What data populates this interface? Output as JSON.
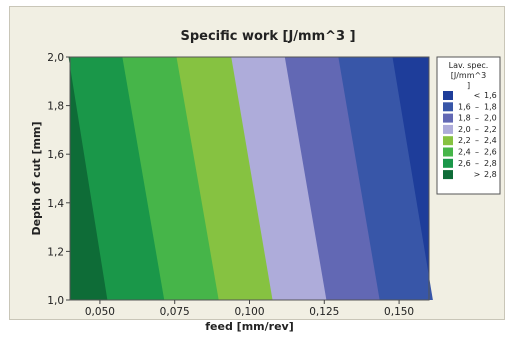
{
  "chart_data": {
    "type": "contour",
    "title": "Specific work [J/mm^3 ]",
    "xlabel": "feed [mm/rev]",
    "ylabel": "Depth of cut [mm]",
    "xlim": [
      0.04,
      0.16
    ],
    "ylim": [
      1.0,
      2.0
    ],
    "xticks": [
      "0,050",
      "0,075",
      "0,100",
      "0,125",
      "0,150"
    ],
    "xtick_values": [
      0.05,
      0.075,
      0.1,
      0.125,
      0.15
    ],
    "yticks": [
      "1,0",
      "1,2",
      "1,4",
      "1,6",
      "1,8",
      "2,0"
    ],
    "ytick_values": [
      1.0,
      1.2,
      1.4,
      1.6,
      1.8,
      2.0
    ],
    "legend": {
      "title": [
        "Lav. spec.",
        "[J/mm^3",
        "]"
      ],
      "placement": "right",
      "levels": [
        {
          "lo": "<",
          "hi": "1,6",
          "color": "#1e3d9a"
        },
        {
          "lo": "1,6",
          "hi": "1,8",
          "color": "#3856a8"
        },
        {
          "lo": "1,8",
          "hi": "2,0",
          "color": "#6268b4"
        },
        {
          "lo": "2,0",
          "hi": "2,2",
          "color": "#aeacda"
        },
        {
          "lo": "2,2",
          "hi": "2,4",
          "color": "#86c241"
        },
        {
          "lo": "2,4",
          "hi": "2,6",
          "color": "#46b549"
        },
        {
          "lo": "2,6",
          "hi": "2,8",
          "color": "#1a9749"
        },
        {
          "lo": ">",
          "hi": "2,8",
          "color": "#0e6c37"
        }
      ]
    },
    "contour_boundaries": [
      {
        "level": "2,8",
        "x_at_ymin": 0.0525,
        "x_at_ymax": 0.0395
      },
      {
        "level": "2,6",
        "x_at_ymin": 0.0715,
        "x_at_ymax": 0.0575
      },
      {
        "level": "2,4",
        "x_at_ymin": 0.0897,
        "x_at_ymax": 0.0756
      },
      {
        "level": "2,2",
        "x_at_ymin": 0.1077,
        "x_at_ymax": 0.0939
      },
      {
        "level": "2,0",
        "x_at_ymin": 0.1257,
        "x_at_ymax": 0.1118
      },
      {
        "level": "1,8",
        "x_at_ymin": 0.1435,
        "x_at_ymax": 0.1297
      },
      {
        "level": "1,6",
        "x_at_ymin": 0.1613,
        "x_at_ymax": 0.1478
      }
    ]
  }
}
